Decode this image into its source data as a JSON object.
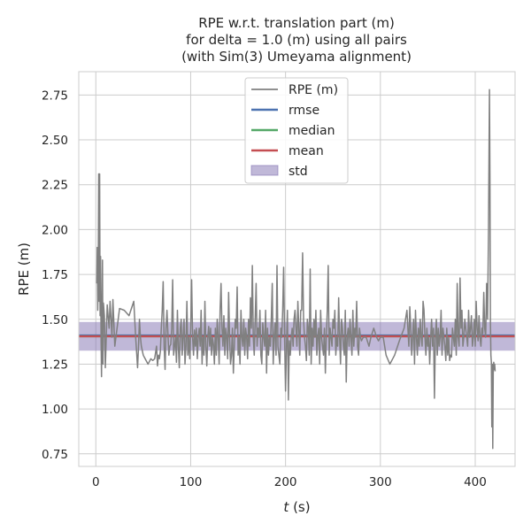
{
  "chart_data": {
    "type": "line",
    "title_lines": [
      "RPE w.r.t. translation part (m)",
      "for delta = 1.0 (m) using all pairs",
      "(with Sim(3) Umeyama alignment)"
    ],
    "xlabel_italic": "t",
    "xlabel_rest": " (s)",
    "ylabel": "RPE (m)",
    "xlim": [
      -18,
      442
    ],
    "ylim": [
      0.68,
      2.88
    ],
    "x_ticks": [
      0,
      100,
      200,
      300,
      400
    ],
    "y_ticks": [
      0.75,
      1.0,
      1.25,
      1.5,
      1.75,
      2.0,
      2.25,
      2.5,
      2.75
    ],
    "grid": true,
    "legend_placement": "top-center",
    "legend": [
      {
        "label": "RPE (m)",
        "kind": "line",
        "color": "#808080"
      },
      {
        "label": "rmse",
        "kind": "line",
        "color": "#4c72b0"
      },
      {
        "label": "median",
        "kind": "line",
        "color": "#55a868"
      },
      {
        "label": "mean",
        "kind": "line",
        "color": "#c44e52"
      },
      {
        "label": "std",
        "kind": "patch",
        "color": "#8172b2"
      }
    ],
    "statistics": {
      "rmse": 1.41,
      "median": 1.405,
      "mean": 1.405,
      "std_low": 1.325,
      "std_high": 1.485
    },
    "series": [
      {
        "x": [
          1,
          1.5,
          2,
          2.5,
          3,
          3.5,
          4,
          4.5,
          5,
          5.5,
          6,
          6.5,
          7,
          7.5,
          8,
          9,
          10,
          12,
          14,
          15,
          16,
          17,
          18,
          20,
          25,
          30,
          35,
          40,
          42,
          44,
          45,
          46,
          47,
          48,
          50,
          52,
          55,
          58,
          60,
          62,
          64,
          65,
          66,
          67,
          68,
          69,
          70,
          71,
          72,
          73,
          74,
          75,
          76,
          77,
          78,
          79,
          80,
          81,
          82,
          83,
          84,
          85,
          86,
          87,
          88,
          89,
          90,
          91,
          92,
          93,
          94,
          95,
          96,
          97,
          98,
          99,
          100,
          101,
          102,
          103,
          104,
          105,
          106,
          107,
          108,
          109,
          110,
          111,
          112,
          113,
          114,
          115,
          116,
          117,
          118,
          119,
          120,
          121,
          122,
          123,
          124,
          125,
          126,
          127,
          128,
          129,
          130,
          131,
          132,
          133,
          134,
          135,
          136,
          137,
          138,
          139,
          140,
          141,
          142,
          143,
          144,
          145,
          146,
          147,
          148,
          149,
          150,
          151,
          152,
          153,
          154,
          155,
          156,
          157,
          158,
          159,
          160,
          161,
          162,
          163,
          164,
          165,
          166,
          167,
          168,
          169,
          170,
          171,
          172,
          173,
          174,
          175,
          176,
          177,
          178,
          179,
          180,
          181,
          182,
          183,
          184,
          185,
          186,
          187,
          188,
          189,
          190,
          191,
          192,
          193,
          194,
          195,
          196,
          197,
          198,
          199,
          200,
          201,
          202,
          203,
          204,
          205,
          206,
          207,
          208,
          209,
          210,
          211,
          212,
          213,
          214,
          215,
          216,
          217,
          218,
          219,
          220,
          221,
          222,
          223,
          224,
          225,
          226,
          227,
          228,
          229,
          230,
          231,
          232,
          233,
          234,
          235,
          236,
          237,
          238,
          239,
          240,
          241,
          242,
          243,
          244,
          245,
          246,
          247,
          248,
          249,
          250,
          251,
          252,
          253,
          254,
          255,
          256,
          257,
          258,
          259,
          260,
          261,
          262,
          263,
          264,
          265,
          266,
          267,
          268,
          269,
          270,
          271,
          272,
          273,
          274,
          275,
          276,
          277,
          278,
          279,
          280,
          282,
          285,
          288,
          290,
          293,
          296,
          298,
          300,
          303,
          306,
          310,
          315,
          320,
          325,
          328,
          330,
          331,
          332,
          333,
          334,
          335,
          336,
          337,
          338,
          339,
          340,
          341,
          342,
          343,
          344,
          345,
          346,
          347,
          348,
          349,
          350,
          351,
          352,
          353,
          354,
          355,
          356,
          357,
          358,
          359,
          360,
          361,
          362,
          363,
          364,
          365,
          366,
          367,
          368,
          369,
          370,
          371,
          372,
          373,
          374,
          375,
          376,
          377,
          378,
          379,
          380,
          381,
          382,
          383,
          384,
          385,
          386,
          387,
          388,
          389,
          390,
          391,
          392,
          393,
          394,
          395,
          396,
          397,
          398,
          399,
          400,
          401,
          402,
          403,
          404,
          405,
          406,
          407,
          408,
          409,
          410,
          411,
          412,
          413,
          414,
          414.5,
          415,
          415.5,
          416,
          416.5,
          417,
          417.5,
          418,
          418.5,
          419,
          419.5,
          420,
          420.5,
          421
        ],
        "y": [
          1.7,
          1.9,
          1.55,
          1.75,
          2.31,
          1.6,
          2.31,
          1.52,
          1.85,
          1.4,
          1.18,
          1.55,
          1.83,
          1.25,
          1.59,
          1.52,
          1.23,
          1.58,
          1.45,
          1.6,
          1.5,
          1.4,
          1.61,
          1.35,
          1.56,
          1.55,
          1.52,
          1.6,
          1.4,
          1.23,
          1.35,
          1.5,
          1.4,
          1.35,
          1.3,
          1.28,
          1.25,
          1.28,
          1.27,
          1.28,
          1.35,
          1.24,
          1.3,
          1.28,
          1.32,
          1.45,
          1.55,
          1.71,
          1.35,
          1.22,
          1.45,
          1.55,
          1.42,
          1.3,
          1.35,
          1.36,
          1.45,
          1.72,
          1.3,
          1.35,
          1.4,
          1.26,
          1.55,
          1.35,
          1.23,
          1.45,
          1.5,
          1.3,
          1.4,
          1.5,
          1.25,
          1.35,
          1.6,
          1.3,
          1.4,
          1.28,
          1.45,
          1.72,
          1.4,
          1.3,
          1.44,
          1.35,
          1.45,
          1.28,
          1.4,
          1.45,
          1.35,
          1.55,
          1.25,
          1.4,
          1.3,
          1.6,
          1.35,
          1.24,
          1.4,
          1.46,
          1.35,
          1.45,
          1.3,
          1.4,
          1.36,
          1.25,
          1.45,
          1.3,
          1.5,
          1.4,
          1.25,
          1.55,
          1.7,
          1.45,
          1.35,
          1.52,
          1.3,
          1.45,
          1.4,
          1.28,
          1.65,
          1.4,
          1.25,
          1.3,
          1.45,
          1.2,
          1.35,
          1.5,
          1.45,
          1.68,
          1.3,
          1.4,
          1.25,
          1.55,
          1.4,
          1.35,
          1.5,
          1.3,
          1.45,
          1.4,
          1.28,
          1.5,
          1.35,
          1.62,
          1.45,
          1.8,
          1.4,
          1.3,
          1.5,
          1.7,
          1.35,
          1.45,
          1.4,
          1.55,
          1.3,
          1.25,
          1.48,
          1.4,
          1.35,
          1.55,
          1.2,
          1.45,
          1.3,
          1.4,
          1.35,
          1.5,
          1.7,
          1.25,
          1.4,
          1.48,
          1.3,
          1.8,
          1.35,
          1.3,
          1.25,
          1.45,
          1.4,
          1.55,
          1.79,
          1.4,
          1.1,
          1.35,
          1.55,
          1.05,
          1.38,
          1.3,
          1.4,
          1.45,
          1.35,
          1.5,
          1.55,
          1.45,
          1.35,
          1.6,
          1.45,
          1.3,
          1.55,
          1.55,
          1.87,
          1.5,
          1.4,
          1.35,
          1.27,
          1.5,
          1.45,
          1.3,
          1.78,
          1.25,
          1.45,
          1.35,
          1.5,
          1.4,
          1.55,
          1.3,
          1.4,
          1.45,
          1.25,
          1.55,
          1.4,
          1.35,
          1.3,
          1.45,
          1.2,
          1.4,
          1.55,
          1.8,
          1.3,
          1.45,
          1.4,
          1.35,
          1.5,
          1.45,
          1.55,
          1.3,
          1.4,
          1.35,
          1.62,
          1.4,
          1.25,
          1.5,
          1.45,
          1.35,
          1.3,
          1.55,
          1.15,
          1.4,
          1.45,
          1.35,
          1.5,
          1.4,
          1.3,
          1.55,
          1.35,
          1.45,
          1.4,
          1.6,
          1.35,
          1.3,
          1.45,
          1.4,
          1.38,
          1.4,
          1.4,
          1.35,
          1.4,
          1.45,
          1.4,
          1.38,
          1.4,
          1.4,
          1.3,
          1.25,
          1.3,
          1.38,
          1.45,
          1.55,
          1.35,
          1.57,
          1.45,
          1.3,
          1.4,
          1.5,
          1.25,
          1.55,
          1.4,
          1.3,
          1.45,
          1.35,
          1.5,
          1.4,
          1.35,
          1.6,
          1.55,
          1.4,
          1.3,
          1.45,
          1.35,
          1.4,
          1.25,
          1.4,
          1.5,
          1.35,
          1.45,
          1.06,
          1.4,
          1.5,
          1.3,
          1.45,
          1.35,
          1.4,
          1.55,
          1.3,
          1.45,
          1.4,
          1.35,
          1.27,
          1.45,
          1.3,
          1.4,
          1.27,
          1.3,
          1.29,
          1.45,
          1.4,
          1.35,
          1.5,
          1.3,
          1.7,
          1.4,
          1.35,
          1.73,
          1.45,
          1.55,
          1.35,
          1.4,
          1.5,
          1.45,
          1.4,
          1.35,
          1.55,
          1.4,
          1.45,
          1.52,
          1.35,
          1.4,
          1.5,
          1.35,
          1.6,
          1.45,
          1.38,
          1.52,
          1.4,
          1.35,
          1.45,
          1.42,
          1.65,
          1.45,
          1.4,
          1.7,
          1.5,
          2.0,
          2.4,
          2.78,
          2.3,
          1.5,
          1.3,
          1.26,
          0.9,
          1.25,
          0.78,
          1.2,
          1.26,
          1.22,
          1.25,
          1.21
        ]
      }
    ]
  }
}
